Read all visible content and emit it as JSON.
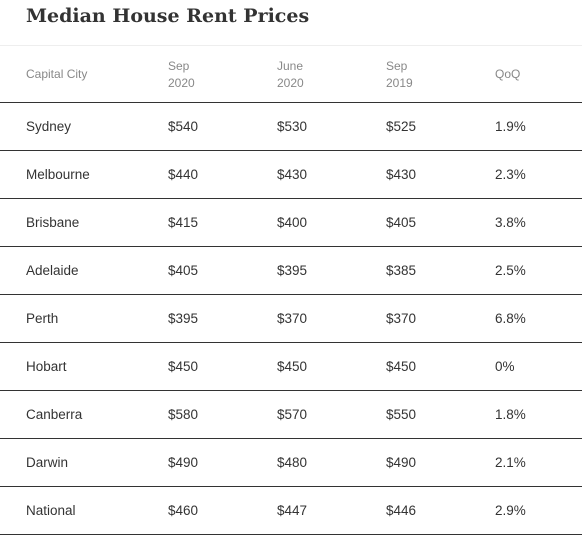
{
  "title": "Median House Rent Prices",
  "headers": [
    "Capital City",
    "Sep\n2020",
    "June\n2020",
    "Sep\n2019",
    "QoQ"
  ],
  "rows": [
    [
      "Sydney",
      "$540",
      "$530",
      "$525",
      "1.9%"
    ],
    [
      "Melbourne",
      "$440",
      "$430",
      "$430",
      "2.3%"
    ],
    [
      "Brisbane",
      "$415",
      "$400",
      "$405",
      "3.8%"
    ],
    [
      "Adelaide",
      "$405",
      "$395",
      "$385",
      "2.5%"
    ],
    [
      "Perth",
      "$395",
      "$370",
      "$370",
      "6.8%"
    ],
    [
      "Hobart",
      "$450",
      "$450",
      "$450",
      "0%"
    ],
    [
      "Canberra",
      "$580",
      "$570",
      "$550",
      "1.8%"
    ],
    [
      "Darwin",
      "$490",
      "$480",
      "$490",
      "2.1%"
    ],
    [
      "National",
      "$460",
      "$447",
      "$446",
      "2.9%"
    ]
  ]
}
